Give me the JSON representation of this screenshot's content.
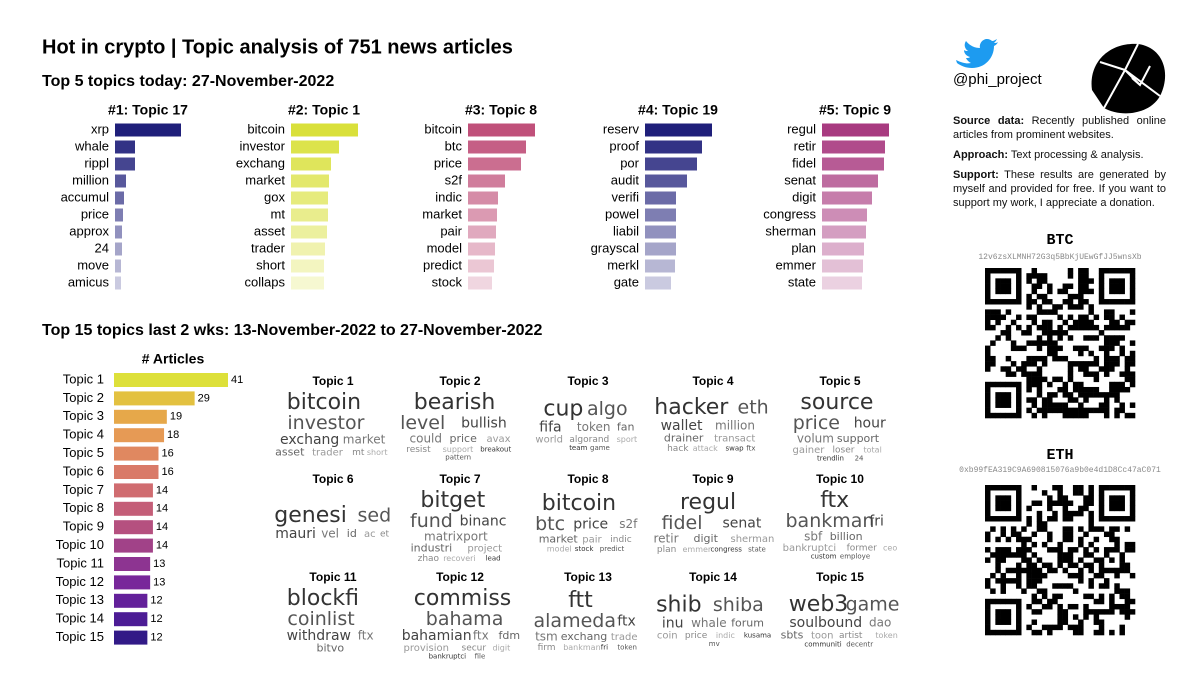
{
  "title": "Hot in crypto | Topic analysis of 751 news articles",
  "top5": {
    "heading": "Top 5 topics today: 27-November-2022",
    "topics": [
      {
        "title": "#1: Topic 17",
        "color": "#1f1f7a",
        "words": [
          "xrp",
          "whale",
          "rippl",
          "million",
          "accumul",
          "price",
          "approx",
          "24",
          "move",
          "amicus"
        ],
        "values": [
          66,
          20,
          20,
          11,
          9,
          8,
          7,
          7,
          6,
          6
        ]
      },
      {
        "title": "#2: Topic 1",
        "color": "#d9e03a",
        "words": [
          "bitcoin",
          "investor",
          "exchang",
          "market",
          "gox",
          "mt",
          "asset",
          "trader",
          "short",
          "collaps"
        ],
        "values": [
          67,
          48,
          40,
          38,
          37,
          37,
          36,
          34,
          33,
          33
        ]
      },
      {
        "title": "#3: Topic 8",
        "color": "#c0507a",
        "words": [
          "bitcoin",
          "btc",
          "price",
          "s2f",
          "indic",
          "market",
          "pair",
          "model",
          "predict",
          "stock"
        ],
        "values": [
          67,
          58,
          53,
          37,
          30,
          29,
          28,
          27,
          26,
          24
        ]
      },
      {
        "title": "#4: Topic 19",
        "color": "#1f1f7a",
        "words": [
          "reserv",
          "proof",
          "por",
          "audit",
          "verifi",
          "powel",
          "liabil",
          "grayscal",
          "merkl",
          "gate"
        ],
        "values": [
          67,
          57,
          52,
          42,
          31,
          31,
          31,
          31,
          30,
          26
        ]
      },
      {
        "title": "#5: Topic 9",
        "color": "#a83a80",
        "words": [
          "regul",
          "retir",
          "fidel",
          "senat",
          "digit",
          "congress",
          "sherman",
          "plan",
          "emmer",
          "state"
        ],
        "values": [
          67,
          63,
          62,
          56,
          50,
          45,
          44,
          42,
          41,
          40
        ]
      }
    ]
  },
  "top15": {
    "heading": "Top 15 topics last 2 wks: 13-November-2022 to 27-November-2022",
    "title": "# Articles",
    "categories": [
      "Topic 1",
      "Topic 2",
      "Topic 3",
      "Topic 4",
      "Topic 5",
      "Topic 6",
      "Topic 7",
      "Topic 8",
      "Topic 9",
      "Topic 10",
      "Topic 11",
      "Topic 12",
      "Topic 13",
      "Topic 14",
      "Topic 15"
    ],
    "values": [
      41,
      29,
      19,
      18,
      16,
      16,
      14,
      14,
      14,
      14,
      13,
      13,
      12,
      12,
      12
    ],
    "colors": [
      "#dde03a",
      "#e3c140",
      "#e6a84a",
      "#e69a55",
      "#e08860",
      "#d97a68",
      "#d06c70",
      "#c45e78",
      "#b5507f",
      "#a14288",
      "#8d3491",
      "#78279a",
      "#63209a",
      "#4c1c95",
      "#321a87"
    ]
  },
  "clouds": [
    {
      "title": "Topic 1",
      "words": [
        "bitcoin",
        "investor",
        "exchang",
        "market",
        "asset",
        "trader",
        "mt",
        "short"
      ]
    },
    {
      "title": "Topic 2",
      "words": [
        "bearish",
        "level",
        "bullish",
        "could",
        "price",
        "avax",
        "resist",
        "support",
        "breakout",
        "pattern"
      ]
    },
    {
      "title": "Topic 3",
      "words": [
        "cup",
        "algo",
        "fifa",
        "token",
        "fan",
        "world",
        "algorand",
        "sport",
        "team",
        "game"
      ]
    },
    {
      "title": "Topic 4",
      "words": [
        "hacker",
        "eth",
        "wallet",
        "million",
        "drainer",
        "transact",
        "hack",
        "attack",
        "swap",
        "ftx"
      ]
    },
    {
      "title": "Topic 5",
      "words": [
        "source",
        "price",
        "hour",
        "volum",
        "support",
        "gainer",
        "loser",
        "total",
        "trendlin",
        "24"
      ]
    },
    {
      "title": "Topic 6",
      "words": [
        "genesi",
        "sed",
        "mauri",
        "vel",
        "id",
        "ac",
        "et"
      ]
    },
    {
      "title": "Topic 7",
      "words": [
        "bitget",
        "fund",
        "binanc",
        "matrixport",
        "industri",
        "project",
        "zhao",
        "recoveri",
        "lead"
      ]
    },
    {
      "title": "Topic 8",
      "words": [
        "bitcoin",
        "btc",
        "price",
        "s2f",
        "market",
        "pair",
        "indic",
        "model",
        "stock",
        "predict"
      ]
    },
    {
      "title": "Topic 9",
      "words": [
        "regul",
        "fidel",
        "senat",
        "retir",
        "digit",
        "sherman",
        "plan",
        "emmer",
        "congress",
        "state"
      ]
    },
    {
      "title": "Topic 10",
      "words": [
        "ftx",
        "bankman",
        "fri",
        "sbf",
        "billion",
        "bankruptci",
        "former",
        "ceo",
        "custom",
        "employe"
      ]
    },
    {
      "title": "Topic 11",
      "words": [
        "blockfi",
        "coinlist",
        "withdraw",
        "ftx",
        "bitvo"
      ]
    },
    {
      "title": "Topic 12",
      "words": [
        "commiss",
        "bahama",
        "bahamian",
        "ftx",
        "fdm",
        "provision",
        "secur",
        "digit",
        "bankruptci",
        "file"
      ]
    },
    {
      "title": "Topic 13",
      "words": [
        "ftt",
        "alameda",
        "ftx",
        "tsm",
        "exchang",
        "trade",
        "firm",
        "bankman",
        "fri",
        "token"
      ]
    },
    {
      "title": "Topic 14",
      "words": [
        "shib",
        "shiba",
        "inu",
        "whale",
        "forum",
        "coin",
        "price",
        "indic",
        "kusama",
        "mv"
      ]
    },
    {
      "title": "Topic 15",
      "words": [
        "web3",
        "game",
        "soulbound",
        "dao",
        "sbts",
        "toon",
        "artist",
        "token",
        "communiti",
        "decentr"
      ]
    }
  ],
  "sidebar": {
    "handle": "@phi_project",
    "notes": [
      {
        "label": "Source data:",
        "text": "Recently published online articles from prominent websites."
      },
      {
        "label": "Approach:",
        "text": "Text processing & analysis."
      },
      {
        "label": "Support:",
        "text": "These results are generated by myself and provided for free. If you want to support my work, I appreciate a donation."
      }
    ],
    "btc": {
      "label": "BTC",
      "address": "12v6zsXLMNH72G3q5BbKjUEwGfJJ5wnsXb"
    },
    "eth": {
      "label": "ETH",
      "address": "0xb99fEA319C9A690815076a9b0e4d1D8Cc47aC071"
    }
  }
}
